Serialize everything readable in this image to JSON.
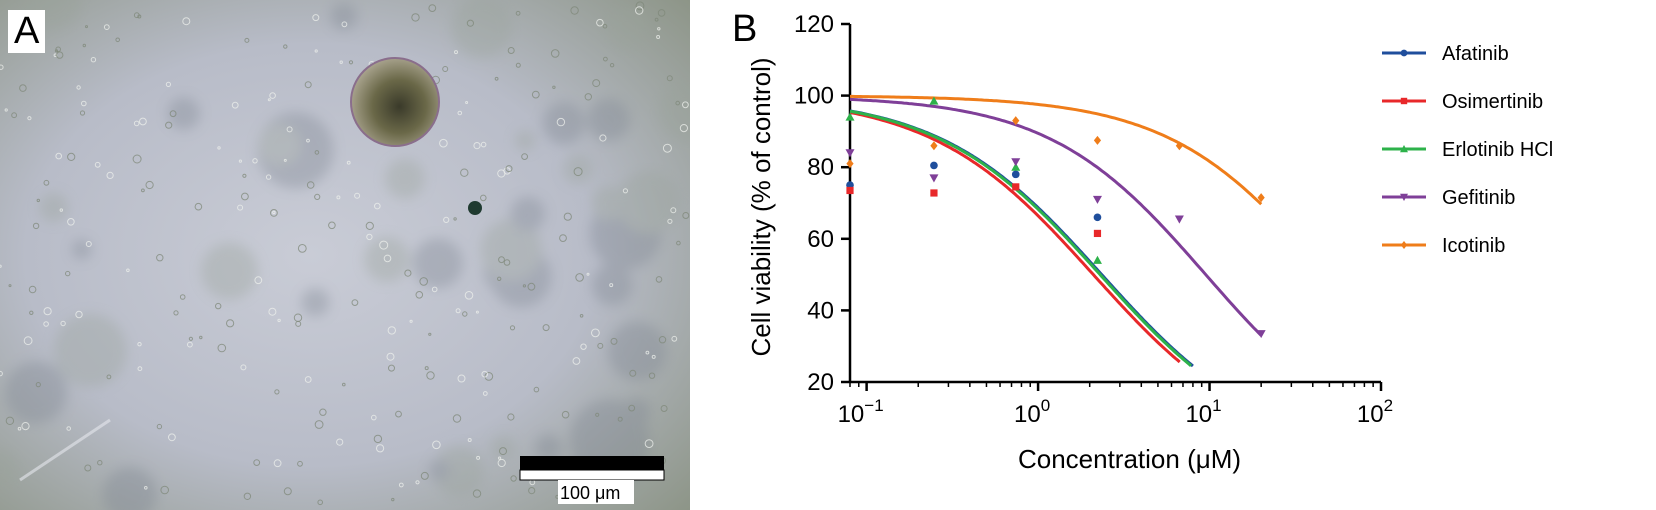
{
  "panel_a": {
    "label": "A",
    "scale_bar": {
      "label": "100 μm"
    }
  },
  "panel_b": {
    "label": "B"
  },
  "chart_data": {
    "type": "scatter",
    "xlabel": "Concentration (μM)",
    "ylabel": "Cell viability (% of control)",
    "x_scale": "log",
    "xlim": [
      0.08,
      100
    ],
    "ylim": [
      20,
      120
    ],
    "x_ticks": [
      {
        "value": 0.1,
        "base": "10",
        "exp": "−1"
      },
      {
        "value": 1,
        "base": "10",
        "exp": "0"
      },
      {
        "value": 10,
        "base": "10",
        "exp": "1"
      },
      {
        "value": 100,
        "base": "10",
        "exp": "2"
      }
    ],
    "y_ticks": [
      20,
      40,
      60,
      80,
      100,
      120
    ],
    "grid": false,
    "legend_position": "right",
    "series": [
      {
        "name": "Afatinib",
        "color": "#1f4e9c",
        "marker": "circle",
        "points": [
          [
            0.08,
            75
          ],
          [
            0.247,
            80.5
          ],
          [
            0.741,
            78
          ],
          [
            2.22,
            66
          ]
        ],
        "fit": {
          "top": 100,
          "bottom": 0,
          "ic50": 2.35,
          "hill": 0.92,
          "x_end": 8
        }
      },
      {
        "name": "Osimertinib",
        "color": "#e8282a",
        "marker": "square",
        "points": [
          [
            0.08,
            73.5
          ],
          [
            0.247,
            72.8
          ],
          [
            0.741,
            74.5
          ],
          [
            2.22,
            61.5
          ]
        ],
        "fit": {
          "top": 100,
          "bottom": 0,
          "ic50": 2.1,
          "hill": 0.92,
          "x_end": 6.7
        }
      },
      {
        "name": "Erlotinib HCl",
        "color": "#2db24a",
        "marker": "triangle-up",
        "points": [
          [
            0.08,
            94
          ],
          [
            0.247,
            98.5
          ],
          [
            0.741,
            80
          ],
          [
            2.22,
            54
          ]
        ],
        "fit": {
          "top": 100,
          "bottom": 0,
          "ic50": 2.3,
          "hill": 0.92,
          "x_end": 7.8
        }
      },
      {
        "name": "Gefitinib",
        "color": "#7f3f98",
        "marker": "triangle-down",
        "points": [
          [
            0.08,
            84
          ],
          [
            0.247,
            77
          ],
          [
            0.741,
            81.5
          ],
          [
            2.22,
            71
          ],
          [
            6.67,
            65.5
          ],
          [
            20,
            33.5
          ]
        ],
        "fit": {
          "top": 100,
          "bottom": 0,
          "ic50": 9.5,
          "hill": 0.95,
          "x_end": 20
        }
      },
      {
        "name": "Icotinib",
        "color": "#ef7d1a",
        "marker": "diamond",
        "points": [
          [
            0.08,
            81
          ],
          [
            0.247,
            86
          ],
          [
            0.741,
            93
          ],
          [
            2.22,
            87.5
          ],
          [
            6.67,
            86
          ],
          [
            20,
            71.5
          ]
        ],
        "fit": {
          "top": 100,
          "bottom": 0,
          "ic50": 48,
          "hill": 0.95,
          "x_end": 20
        }
      }
    ]
  }
}
